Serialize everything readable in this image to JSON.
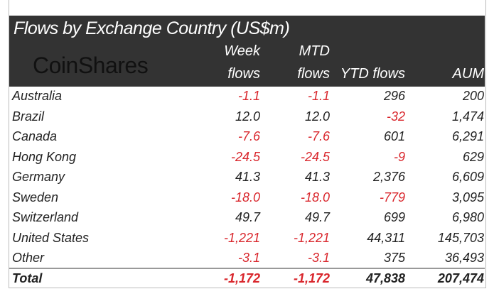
{
  "header": {
    "title": "Flows by Exchange Country (US$m)",
    "logo": "CoinShares"
  },
  "colors": {
    "header_bg": "#333333",
    "negative": "#d9262c",
    "text": "#222222"
  },
  "chart_data": {
    "type": "table",
    "title": "Flows by Exchange Country (US$m)",
    "columns": [
      {
        "line1": "",
        "line2": ""
      },
      {
        "line1": "Week",
        "line2": "flows"
      },
      {
        "line1": "MTD",
        "line2": "flows"
      },
      {
        "line1": "",
        "line2": "YTD flows"
      },
      {
        "line1": "",
        "line2": "AUM"
      }
    ],
    "rows": [
      [
        "Australia",
        "-1.1",
        "-1.1",
        "296",
        "200"
      ],
      [
        "Brazil",
        "12.0",
        "12.0",
        "-32",
        "1,474"
      ],
      [
        "Canada",
        "-7.6",
        "-7.6",
        "601",
        "6,291"
      ],
      [
        "Hong Kong",
        "-24.5",
        "-24.5",
        "-9",
        "629"
      ],
      [
        "Germany",
        "41.3",
        "41.3",
        "2,376",
        "6,609"
      ],
      [
        "Sweden",
        "-18.0",
        "-18.0",
        "-779",
        "3,095"
      ],
      [
        "Switzerland",
        "49.7",
        "49.7",
        "699",
        "6,980"
      ],
      [
        "United States",
        "-1,221",
        "-1,221",
        "44,311",
        "145,703"
      ],
      [
        "Other",
        "-3.1",
        "-3.1",
        "375",
        "36,493"
      ]
    ],
    "total": [
      "Total",
      "-1,172",
      "-1,172",
      "47,838",
      "207,474"
    ]
  }
}
